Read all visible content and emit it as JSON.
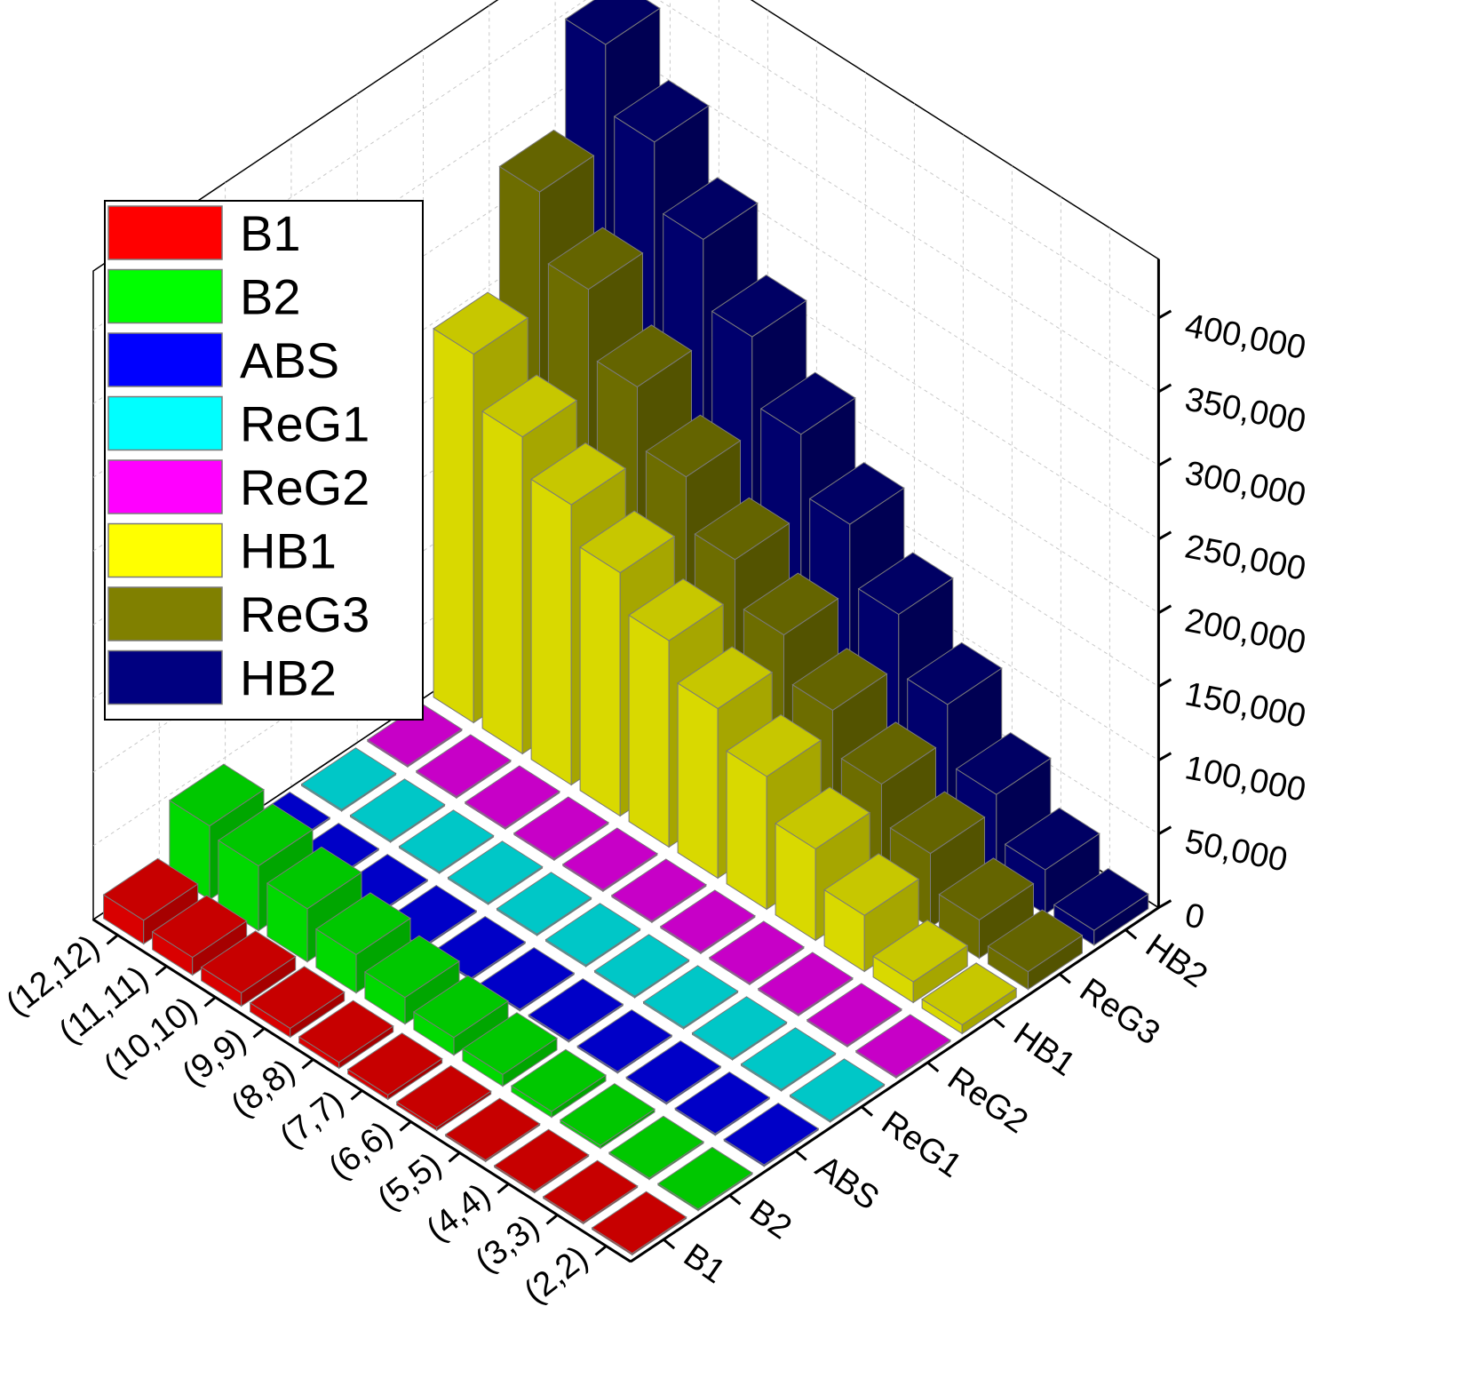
{
  "chart_data": {
    "type": "bar",
    "subtype": "3d-bar",
    "title": "",
    "xlabel": "",
    "ylabel": "",
    "zlabel": "",
    "categories": [
      "(2,2)",
      "(3,3)",
      "(4,4)",
      "(5,5)",
      "(6,6)",
      "(7,7)",
      "(8,8)",
      "(9,9)",
      "(10,10)",
      "(11,11)",
      "(12,12)"
    ],
    "series_axis_labels": [
      "B1",
      "B2",
      "ABS",
      "ReG1",
      "ReG2",
      "HB1",
      "ReG3",
      "HB2"
    ],
    "zlim": [
      0,
      440000
    ],
    "z_ticks": [
      0,
      50000,
      100000,
      150000,
      200000,
      250000,
      300000,
      350000,
      400000
    ],
    "z_tick_labels": [
      "0",
      "50,000",
      "100,000",
      "150,000",
      "200,000",
      "250,000",
      "300,000",
      "350,000",
      "400,000"
    ],
    "grid": true,
    "legend_position": "top-left",
    "series": [
      {
        "name": "B1",
        "color": "#ff0000",
        "values": [
          1000,
          1000,
          1000,
          1000,
          2000,
          3000,
          4000,
          6000,
          9000,
          12000,
          16000
        ]
      },
      {
        "name": "B2",
        "color": "#00ff00",
        "values": [
          1000,
          1000,
          2000,
          4000,
          8000,
          12000,
          18000,
          26000,
          36000,
          44000,
          50000
        ]
      },
      {
        "name": "ABS",
        "color": "#0000ff",
        "values": [
          1000,
          1000,
          1000,
          1000,
          1000,
          1000,
          1000,
          1000,
          1000,
          1000,
          1000
        ]
      },
      {
        "name": "ReG1",
        "color": "#00ffff",
        "values": [
          1000,
          1000,
          1000,
          1000,
          1000,
          1000,
          1000,
          1000,
          1000,
          1000,
          1000
        ]
      },
      {
        "name": "ReG2",
        "color": "#ff00ff",
        "values": [
          1000,
          1000,
          1000,
          1000,
          1000,
          1000,
          1000,
          1000,
          1000,
          1000,
          1000
        ]
      },
      {
        "name": "HB1",
        "color": "#ffff00",
        "values": [
          6000,
          14000,
          38000,
          62000,
          90000,
          115000,
          140000,
          165000,
          190000,
          215000,
          250000
        ]
      },
      {
        "name": "ReG3",
        "color": "#808000",
        "values": [
          12000,
          26000,
          50000,
          76000,
          105000,
          135000,
          165000,
          200000,
          240000,
          285000,
          330000
        ]
      },
      {
        "name": "HB2",
        "color": "#000080",
        "values": [
          10000,
          30000,
          60000,
          100000,
          140000,
          180000,
          220000,
          265000,
          310000,
          355000,
          400000
        ]
      }
    ]
  }
}
